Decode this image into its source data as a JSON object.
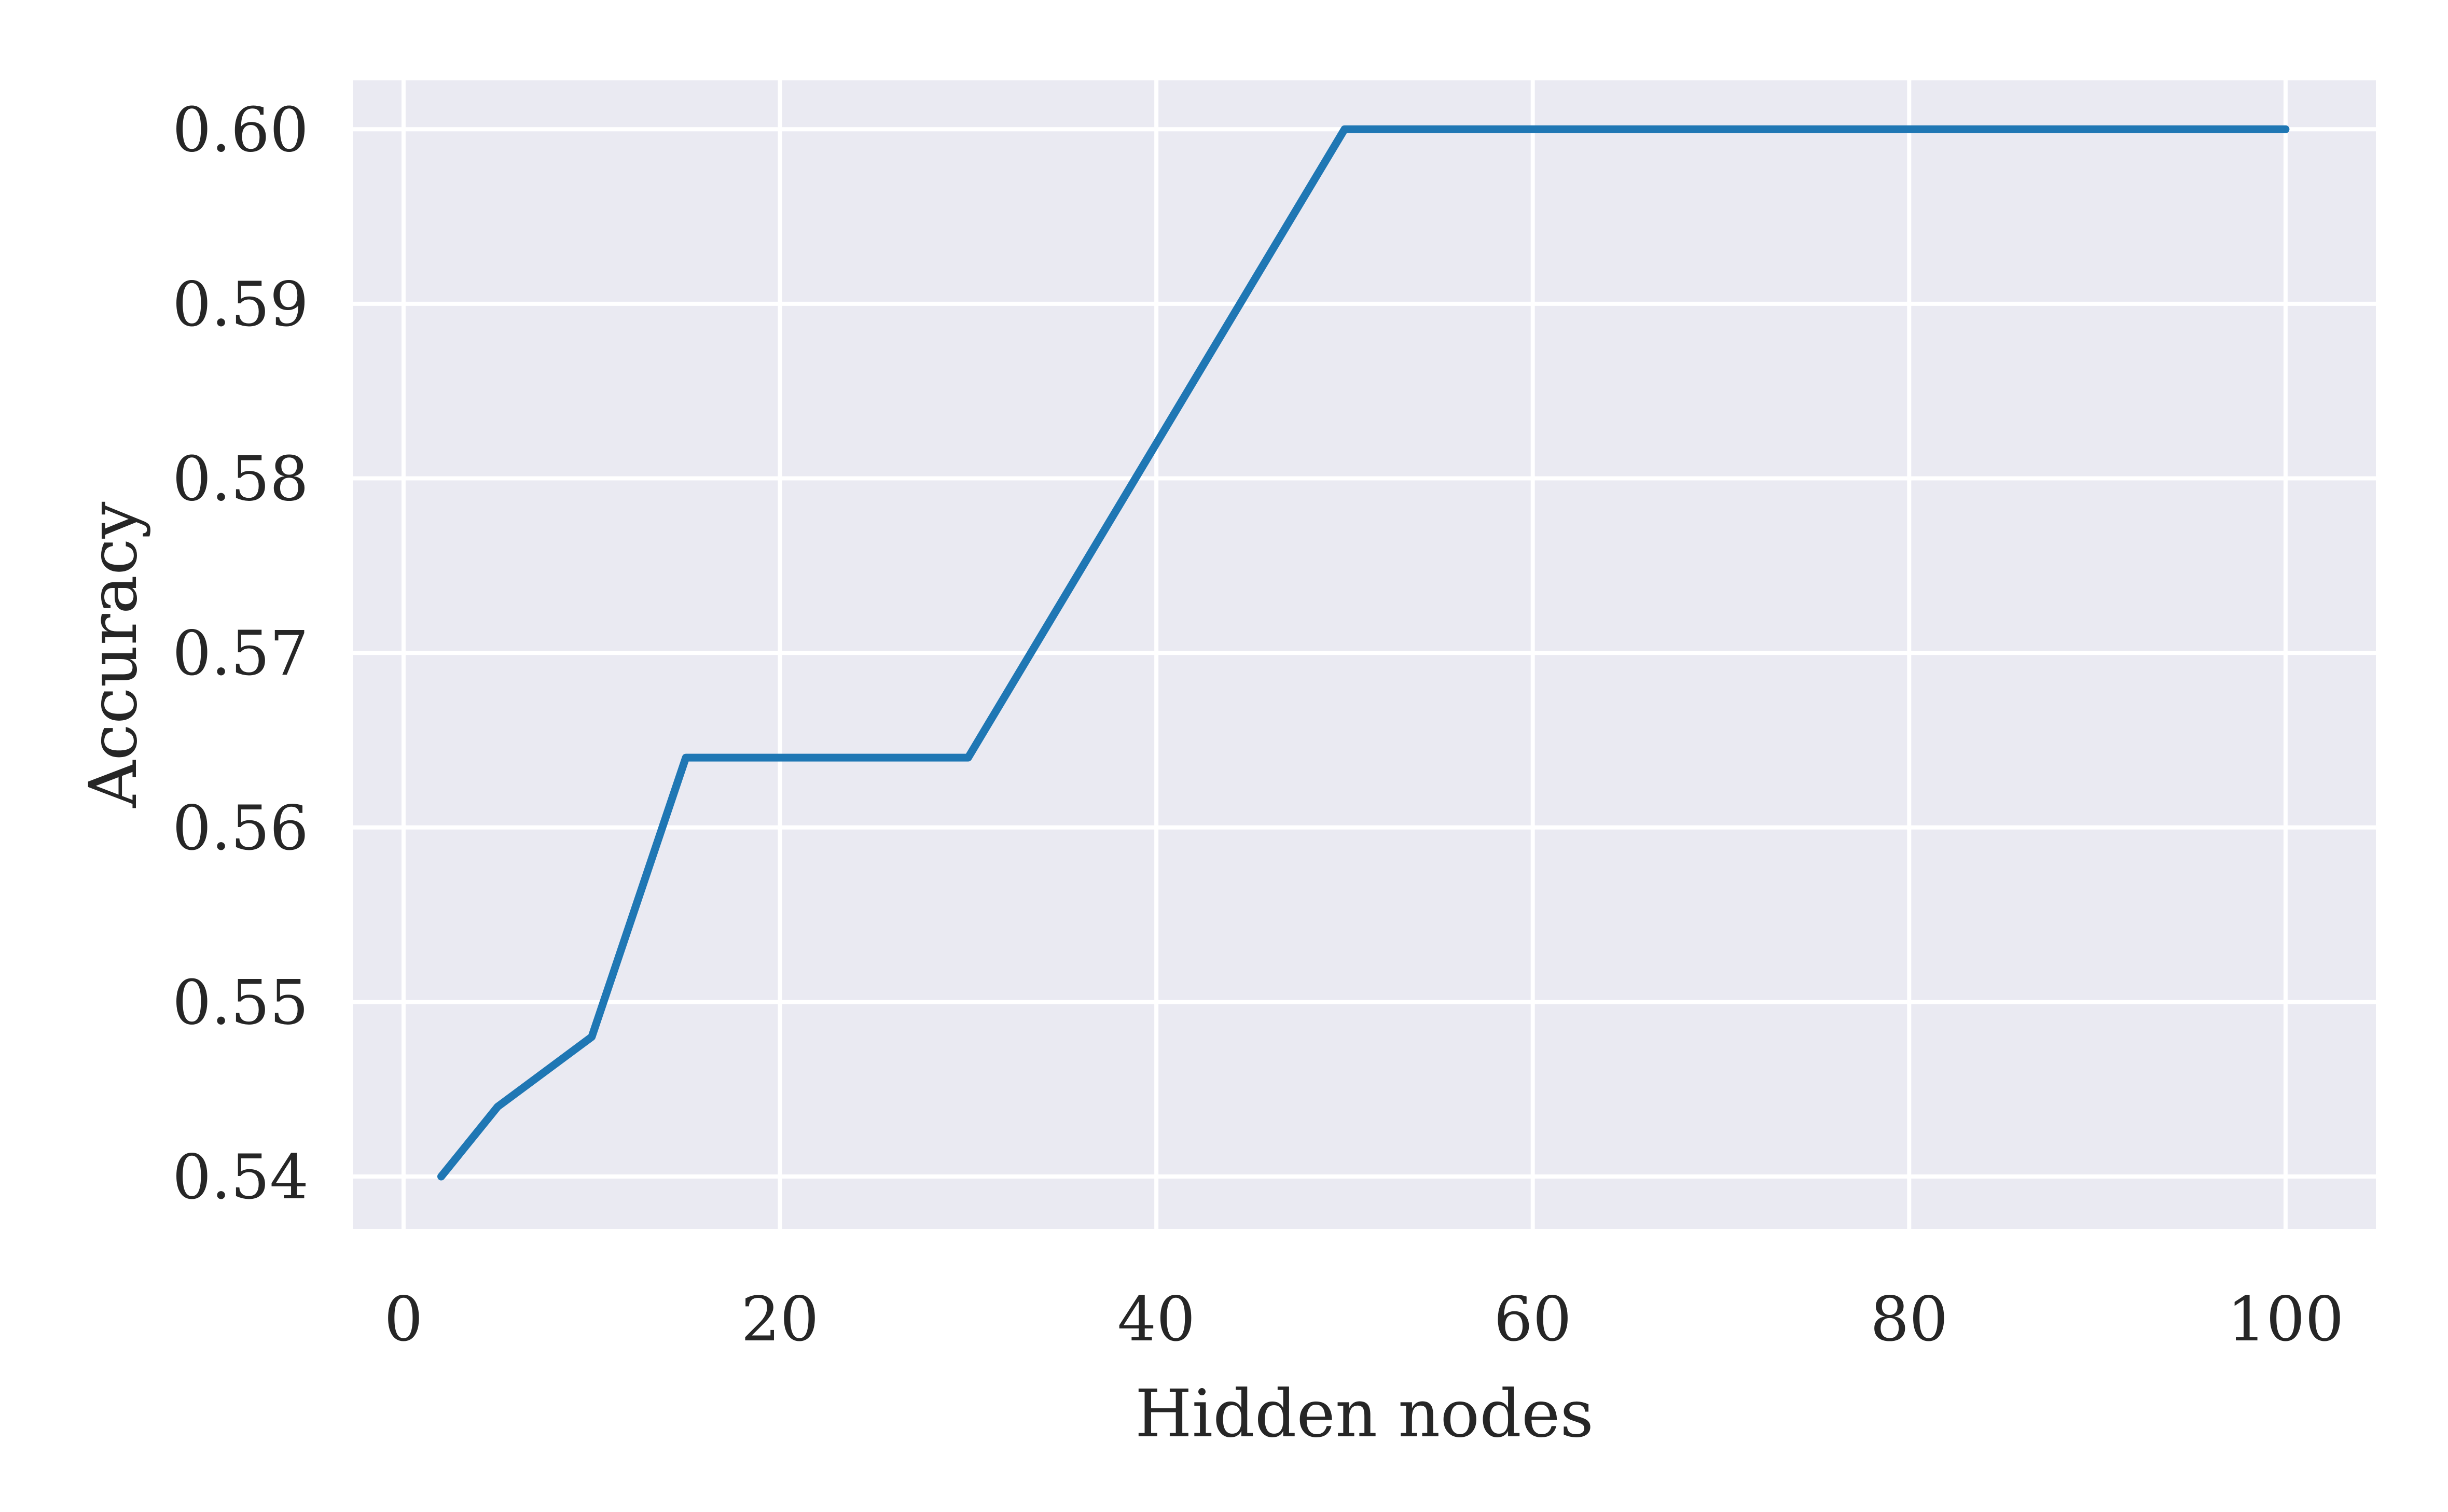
{
  "chart_data": {
    "type": "line",
    "xlabel": "Hidden nodes",
    "ylabel": "Accuracy",
    "xlim": [
      -2.7,
      104.8
    ],
    "ylim": [
      0.537,
      0.6028
    ],
    "xticks": [
      0,
      20,
      40,
      60,
      80,
      100
    ],
    "xtick_labels": [
      "0",
      "20",
      "40",
      "60",
      "80",
      "100"
    ],
    "yticks": [
      0.54,
      0.55,
      0.56,
      0.57,
      0.58,
      0.59,
      0.6
    ],
    "ytick_labels": [
      "0.54",
      "0.55",
      "0.56",
      "0.57",
      "0.58",
      "0.59",
      "0.60"
    ],
    "grid": true,
    "colors": {
      "plot_background": "#eaeaf2",
      "grid": "#ffffff",
      "line": "#1f77b4",
      "text": "#262626"
    },
    "series": [
      {
        "x": [
          2,
          5,
          10,
          15,
          20,
          25,
          30,
          35,
          40,
          45,
          50,
          55,
          60,
          65,
          70,
          75,
          80,
          85,
          90,
          95,
          100
        ],
        "y": [
          0.54,
          0.544,
          0.548,
          0.564,
          0.564,
          0.564,
          0.564,
          0.573,
          0.582,
          0.591,
          0.6,
          0.6,
          0.6,
          0.6,
          0.6,
          0.6,
          0.6,
          0.6,
          0.6,
          0.6,
          0.6
        ]
      }
    ]
  }
}
